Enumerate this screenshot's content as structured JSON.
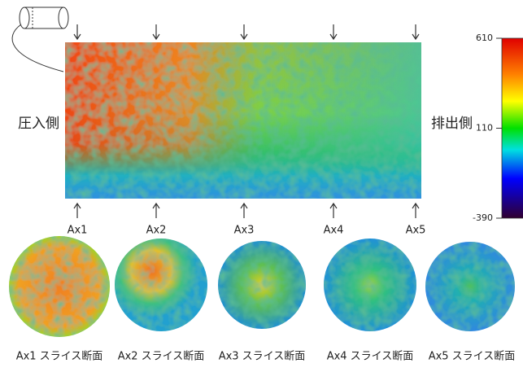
{
  "side_labels": {
    "left": "圧入側",
    "right": "排出側"
  },
  "axes": [
    "Ax1",
    "Ax2",
    "Ax3",
    "Ax4",
    "Ax5"
  ],
  "colorbar": {
    "ticks": [
      610,
      110,
      -390
    ]
  },
  "slices": [
    "Ax1 スライス断面",
    "Ax2 スライス断面",
    "Ax3 スライス断面",
    "Ax4 スライス断面",
    "Ax5 スライス断面"
  ]
}
